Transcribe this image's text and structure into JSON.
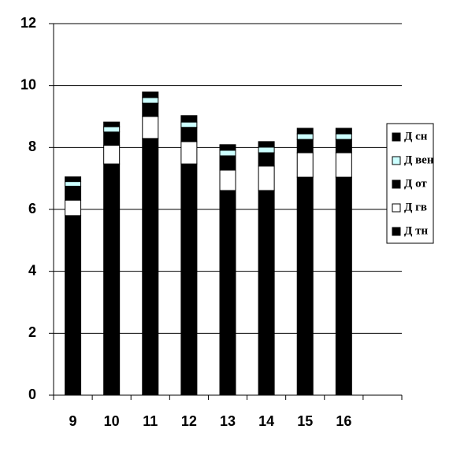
{
  "chart_data": {
    "type": "stacked_bar",
    "categories": [
      "9",
      "10",
      "11",
      "12",
      "13",
      "14",
      "15",
      "16",
      null
    ],
    "series": [
      {
        "name": "Д тн",
        "color": "#000000",
        "values": [
          5.8,
          7.47,
          8.29,
          7.47,
          6.61,
          6.61,
          7.04,
          7.04,
          null
        ]
      },
      {
        "name": "Д гв",
        "color": "#ffffff",
        "values": [
          0.5,
          0.6,
          0.71,
          0.72,
          0.66,
          0.79,
          0.79,
          0.79,
          null
        ]
      },
      {
        "name": "Д от",
        "color": "#000000",
        "values": [
          0.45,
          0.43,
          0.43,
          0.46,
          0.46,
          0.43,
          0.43,
          0.43,
          null
        ]
      },
      {
        "name": "Д вен",
        "color": "#ccffff",
        "values": [
          0.15,
          0.17,
          0.18,
          0.17,
          0.18,
          0.18,
          0.18,
          0.18,
          null
        ]
      },
      {
        "name": "Д сн",
        "color": "#000000",
        "values": [
          0.15,
          0.15,
          0.18,
          0.21,
          0.18,
          0.18,
          0.18,
          0.18,
          null
        ]
      }
    ],
    "ylim": [
      0,
      12
    ],
    "yticks": [
      0,
      2,
      4,
      6,
      8,
      10,
      12
    ],
    "grid": true
  }
}
